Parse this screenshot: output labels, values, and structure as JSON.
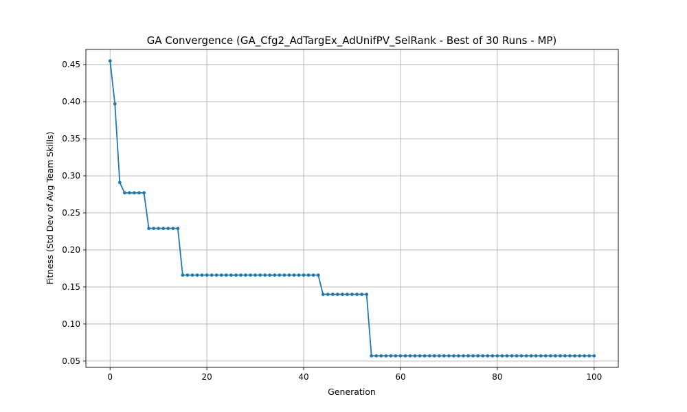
{
  "chart_data": {
    "type": "line",
    "title": "GA Convergence (GA_Cfg2_AdTargEx_AdUnifPV_SelRank - Best of 30 Runs - MP)",
    "xlabel": "Generation",
    "ylabel": "Fitness (Std Dev of Avg Team Skills)",
    "xlim": [
      -5,
      105
    ],
    "ylim": [
      0.0415,
      0.4705
    ],
    "xticks": [
      0,
      20,
      40,
      60,
      80,
      100
    ],
    "xtick_labels": [
      "0",
      "20",
      "40",
      "60",
      "80",
      "100"
    ],
    "yticks": [
      0.05,
      0.1,
      0.15,
      0.2,
      0.25,
      0.3,
      0.35,
      0.4,
      0.45
    ],
    "ytick_labels": [
      "0.05",
      "0.10",
      "0.15",
      "0.20",
      "0.25",
      "0.30",
      "0.35",
      "0.40",
      "0.45"
    ],
    "grid": true,
    "color": "#1f77b4",
    "marker": "circle",
    "x": [
      0,
      1,
      2,
      3,
      4,
      5,
      6,
      7,
      8,
      9,
      10,
      11,
      12,
      13,
      14,
      15,
      16,
      17,
      18,
      19,
      20,
      21,
      22,
      23,
      24,
      25,
      26,
      27,
      28,
      29,
      30,
      31,
      32,
      33,
      34,
      35,
      36,
      37,
      38,
      39,
      40,
      41,
      42,
      43,
      44,
      45,
      46,
      47,
      48,
      49,
      50,
      51,
      52,
      53,
      54,
      55,
      56,
      57,
      58,
      59,
      60,
      61,
      62,
      63,
      64,
      65,
      66,
      67,
      68,
      69,
      70,
      71,
      72,
      73,
      74,
      75,
      76,
      77,
      78,
      79,
      80,
      81,
      82,
      83,
      84,
      85,
      86,
      87,
      88,
      89,
      90,
      91,
      92,
      93,
      94,
      95,
      96,
      97,
      98,
      99,
      100
    ],
    "y": [
      0.455,
      0.397,
      0.291,
      0.277,
      0.277,
      0.277,
      0.277,
      0.277,
      0.229,
      0.229,
      0.229,
      0.229,
      0.229,
      0.229,
      0.229,
      0.166,
      0.166,
      0.166,
      0.166,
      0.166,
      0.166,
      0.166,
      0.166,
      0.166,
      0.166,
      0.166,
      0.166,
      0.166,
      0.166,
      0.166,
      0.166,
      0.166,
      0.166,
      0.166,
      0.166,
      0.166,
      0.166,
      0.166,
      0.166,
      0.166,
      0.166,
      0.166,
      0.166,
      0.166,
      0.14,
      0.14,
      0.14,
      0.14,
      0.14,
      0.14,
      0.14,
      0.14,
      0.14,
      0.14,
      0.057,
      0.057,
      0.057,
      0.057,
      0.057,
      0.057,
      0.057,
      0.057,
      0.057,
      0.057,
      0.057,
      0.057,
      0.057,
      0.057,
      0.057,
      0.057,
      0.057,
      0.057,
      0.057,
      0.057,
      0.057,
      0.057,
      0.057,
      0.057,
      0.057,
      0.057,
      0.057,
      0.057,
      0.057,
      0.057,
      0.057,
      0.057,
      0.057,
      0.057,
      0.057,
      0.057,
      0.057,
      0.057,
      0.057,
      0.057,
      0.057,
      0.057,
      0.057,
      0.057,
      0.057,
      0.057,
      0.057
    ]
  }
}
